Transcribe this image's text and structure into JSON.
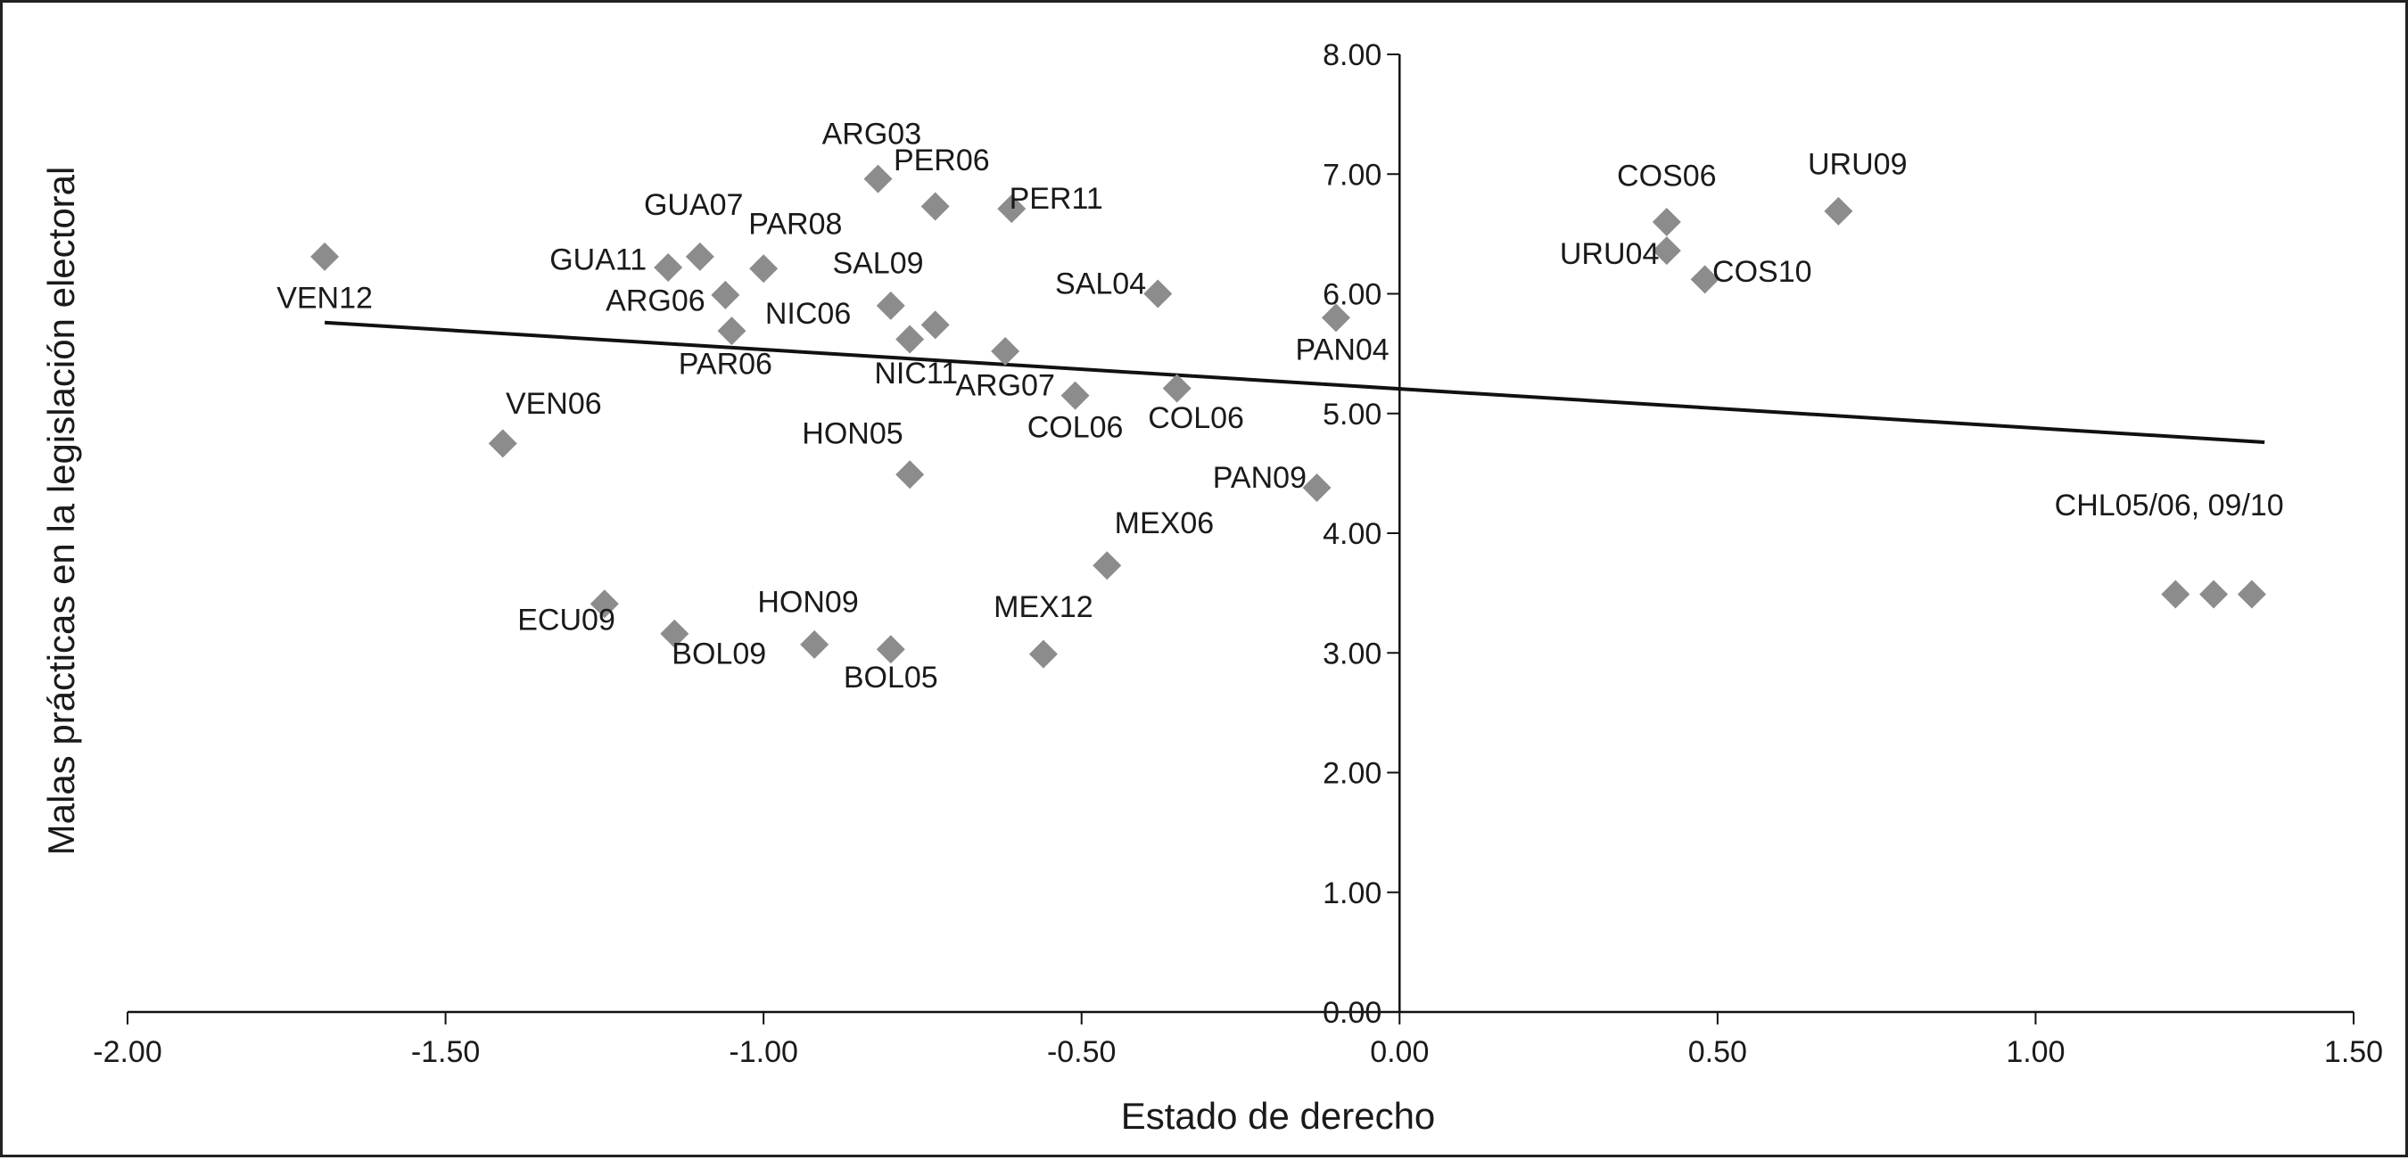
{
  "chart_data": {
    "type": "scatter",
    "title": "",
    "xlabel": "Estado de derecho",
    "ylabel": "Malas prácticas en la legislación electoral",
    "xlim": [
      -2.0,
      1.5
    ],
    "ylim": [
      0.0,
      8.0
    ],
    "x_ticks": [
      "-2.00",
      "-1.50",
      "-1.00",
      "-0.50",
      "0.00",
      "0.50",
      "1.00",
      "1.50"
    ],
    "x_tick_values": [
      -2.0,
      -1.5,
      -1.0,
      -0.5,
      0.0,
      0.5,
      1.0,
      1.5
    ],
    "y_ticks": [
      "0.00",
      "1.00",
      "2.00",
      "3.00",
      "4.00",
      "5.00",
      "6.00",
      "7.00",
      "8.00"
    ],
    "y_tick_values": [
      0,
      1,
      2,
      3,
      4,
      5,
      6,
      7,
      8
    ],
    "marker_color": "#8c8c8c",
    "line_color": "#111111",
    "trendline": {
      "x": [
        -1.69,
        1.36
      ],
      "y": [
        5.76,
        4.76
      ]
    },
    "points": [
      {
        "x": -1.69,
        "y": 6.31
      },
      {
        "x": -1.41,
        "y": 4.75
      },
      {
        "x": -1.25,
        "y": 3.41
      },
      {
        "x": -1.14,
        "y": 3.16
      },
      {
        "x": -1.15,
        "y": 6.22
      },
      {
        "x": -1.1,
        "y": 6.31
      },
      {
        "x": -1.06,
        "y": 5.99
      },
      {
        "x": -1.05,
        "y": 5.69
      },
      {
        "x": -1.0,
        "y": 6.21
      },
      {
        "x": -0.92,
        "y": 3.07
      },
      {
        "x": -0.82,
        "y": 6.96
      },
      {
        "x": -0.8,
        "y": 5.9
      },
      {
        "x": -0.8,
        "y": 3.03
      },
      {
        "x": -0.77,
        "y": 5.62
      },
      {
        "x": -0.77,
        "y": 4.49
      },
      {
        "x": -0.73,
        "y": 6.73
      },
      {
        "x": -0.73,
        "y": 5.74
      },
      {
        "x": -0.62,
        "y": 5.52
      },
      {
        "x": -0.61,
        "y": 6.71
      },
      {
        "x": -0.56,
        "y": 2.99
      },
      {
        "x": -0.51,
        "y": 5.15
      },
      {
        "x": -0.46,
        "y": 3.73
      },
      {
        "x": -0.38,
        "y": 6.0
      },
      {
        "x": -0.35,
        "y": 5.21
      },
      {
        "x": -0.13,
        "y": 4.38
      },
      {
        "x": -0.1,
        "y": 5.8
      },
      {
        "x": 0.42,
        "y": 6.6
      },
      {
        "x": 0.42,
        "y": 6.36
      },
      {
        "x": 0.48,
        "y": 6.12
      },
      {
        "x": 0.69,
        "y": 6.69
      },
      {
        "x": 1.22,
        "y": 3.49
      },
      {
        "x": 1.28,
        "y": 3.49
      },
      {
        "x": 1.34,
        "y": 3.49
      }
    ],
    "labels": [
      {
        "text": "VEN12",
        "x": -1.69,
        "y": 5.88
      },
      {
        "text": "VEN06",
        "x": -1.33,
        "y": 5.0
      },
      {
        "text": "ECU09",
        "x": -1.31,
        "y": 3.19
      },
      {
        "text": "BOL09",
        "x": -1.07,
        "y": 2.91
      },
      {
        "text": "GUA11",
        "x": -1.26,
        "y": 6.2
      },
      {
        "text": "GUA07",
        "x": -1.11,
        "y": 6.66
      },
      {
        "text": "ARG06",
        "x": -1.17,
        "y": 5.86
      },
      {
        "text": "PAR06",
        "x": -1.06,
        "y": 5.33
      },
      {
        "text": "PAR08",
        "x": -0.95,
        "y": 6.5
      },
      {
        "text": "HON09",
        "x": -0.93,
        "y": 3.34
      },
      {
        "text": "ARG03",
        "x": -0.83,
        "y": 7.25
      },
      {
        "text": "SAL09",
        "x": -0.82,
        "y": 6.17
      },
      {
        "text": "NIC06",
        "x": -0.93,
        "y": 5.75
      },
      {
        "text": "BOL05",
        "x": -0.8,
        "y": 2.71
      },
      {
        "text": "NIC11",
        "x": -0.76,
        "y": 5.25
      },
      {
        "text": "HON05",
        "x": -0.86,
        "y": 4.75
      },
      {
        "text": "PER06",
        "x": -0.72,
        "y": 7.03
      },
      {
        "text": "PER11",
        "x": -0.54,
        "y": 6.71
      },
      {
        "text": "ARG07",
        "x": -0.62,
        "y": 5.15
      },
      {
        "text": "COL06",
        "x": -0.51,
        "y": 4.8
      },
      {
        "text": "MEX06",
        "x": -0.37,
        "y": 4.0
      },
      {
        "text": "MEX12",
        "x": -0.56,
        "y": 3.3
      },
      {
        "text": "SAL04",
        "x": -0.47,
        "y": 6.0
      },
      {
        "text": "COL06",
        "x": -0.32,
        "y": 4.88
      },
      {
        "text": "PAN09",
        "x": -0.22,
        "y": 4.38
      },
      {
        "text": "PAN04",
        "x": -0.09,
        "y": 5.45
      },
      {
        "text": "COS06",
        "x": 0.42,
        "y": 6.9
      },
      {
        "text": "URU04",
        "x": 0.33,
        "y": 6.25
      },
      {
        "text": "COS10",
        "x": 0.57,
        "y": 6.1
      },
      {
        "text": "URU09",
        "x": 0.72,
        "y": 7.0
      },
      {
        "text": "CHL05/06, 09/10",
        "x": 1.21,
        "y": 4.15
      }
    ]
  }
}
